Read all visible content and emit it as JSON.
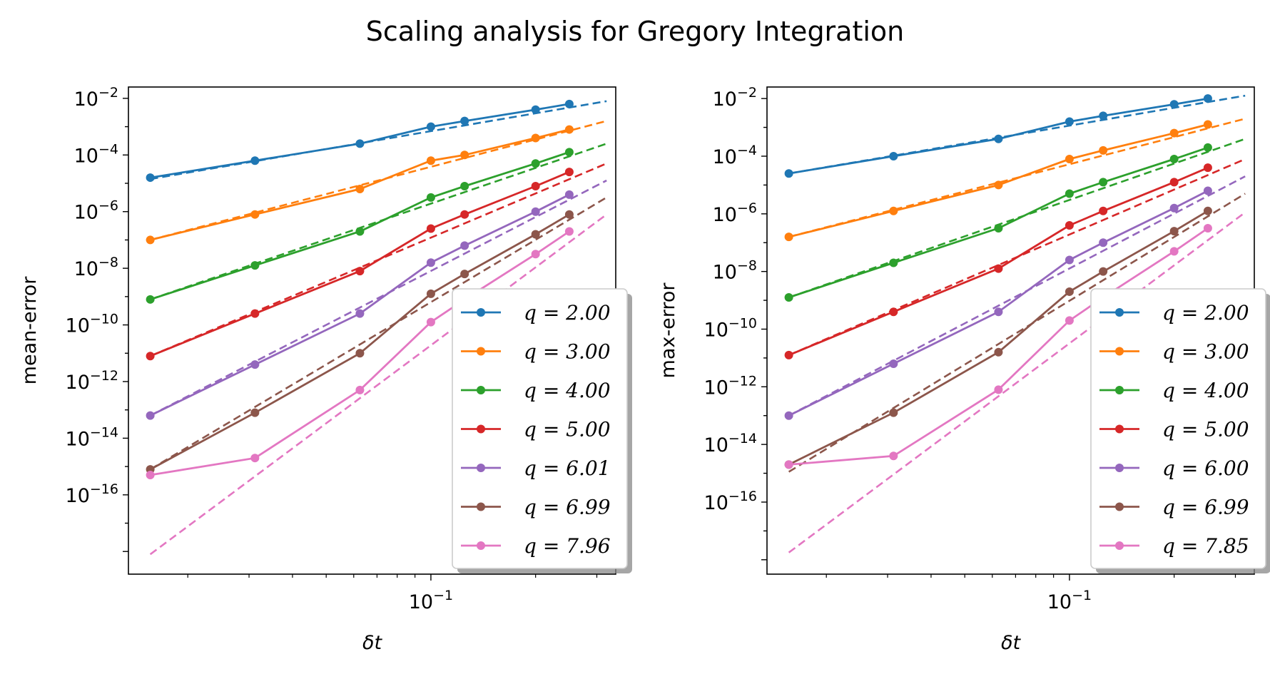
{
  "title": "Scaling analysis for Gregory Integration",
  "colors": [
    "#1f77b4",
    "#ff7f0e",
    "#2ca02c",
    "#d62728",
    "#9467bd",
    "#8c564b",
    "#e377c2"
  ],
  "chart_data": [
    {
      "type": "line",
      "xscale": "log",
      "yscale": "log",
      "xlabel": "δt",
      "ylabel": "mean-error",
      "xlim": [
        0.0135,
        0.34
      ],
      "ylim_exp": [
        -18.8,
        -1.6
      ],
      "xticks": [
        {
          "base": "10",
          "exp": "−1",
          "value": 0.1
        }
      ],
      "yticks": [
        {
          "base": "10",
          "exp": "−16",
          "value": -16
        },
        {
          "base": "10",
          "exp": "−14",
          "value": -14
        },
        {
          "base": "10",
          "exp": "−12",
          "value": -12
        },
        {
          "base": "10",
          "exp": "−10",
          "value": -10
        },
        {
          "base": "10",
          "exp": "−8",
          "value": -8
        },
        {
          "base": "10",
          "exp": "−6",
          "value": -6
        },
        {
          "base": "10",
          "exp": "−4",
          "value": -4
        },
        {
          "base": "10",
          "exp": "−2",
          "value": -2
        }
      ],
      "x": [
        0.0156,
        0.0312,
        0.0625,
        0.1,
        0.125,
        0.2,
        0.25
      ],
      "legend_location": "lower right",
      "series": [
        {
          "name": "q = 2.00",
          "log10_values": [
            -4.8,
            -4.2,
            -3.6,
            -3.0,
            -2.8,
            -2.4,
            -2.2
          ],
          "fit": [
            [
              0.0156,
              -4.85
            ],
            [
              0.32,
              -2.1
            ]
          ]
        },
        {
          "name": "q = 3.00",
          "log10_values": [
            -7.0,
            -6.1,
            -5.2,
            -4.2,
            -4.0,
            -3.4,
            -3.1
          ],
          "fit": [
            [
              0.0156,
              -7.0
            ],
            [
              0.32,
              -2.8
            ]
          ]
        },
        {
          "name": "q = 4.00",
          "log10_values": [
            -9.1,
            -7.9,
            -6.7,
            -5.5,
            -5.1,
            -4.3,
            -3.9
          ],
          "fit": [
            [
              0.0156,
              -9.1
            ],
            [
              0.32,
              -3.6
            ]
          ]
        },
        {
          "name": "q = 5.00",
          "log10_values": [
            -11.1,
            -9.6,
            -8.1,
            -6.6,
            -6.1,
            -5.1,
            -4.6
          ],
          "fit": [
            [
              0.0156,
              -11.1
            ],
            [
              0.32,
              -4.3
            ]
          ]
        },
        {
          "name": "q = 6.01",
          "log10_values": [
            -13.2,
            -11.4,
            -9.6,
            -7.8,
            -7.2,
            -6.0,
            -5.4
          ],
          "fit": [
            [
              0.0156,
              -13.2
            ],
            [
              0.32,
              -4.9
            ]
          ]
        },
        {
          "name": "q = 6.99",
          "log10_values": [
            -15.1,
            -13.1,
            -11.0,
            -8.9,
            -8.2,
            -6.8,
            -6.1
          ],
          "fit": [
            [
              0.0156,
              -15.1
            ],
            [
              0.32,
              -5.5
            ]
          ]
        },
        {
          "name": "q = 7.96",
          "log10_values": [
            -15.3,
            -14.7,
            -12.3,
            -9.9,
            -9.1,
            -7.5,
            -6.7
          ],
          "fit": [
            [
              0.0156,
              -18.1
            ],
            [
              0.32,
              -6.1
            ]
          ]
        }
      ]
    },
    {
      "type": "line",
      "xscale": "log",
      "yscale": "log",
      "xlabel": "δt",
      "ylabel": "max-error",
      "xlim": [
        0.0135,
        0.34
      ],
      "ylim_exp": [
        -18.5,
        -1.6
      ],
      "xticks": [
        {
          "base": "10",
          "exp": "−1",
          "value": 0.1
        }
      ],
      "yticks": [
        {
          "base": "10",
          "exp": "−16",
          "value": -16
        },
        {
          "base": "10",
          "exp": "−14",
          "value": -14
        },
        {
          "base": "10",
          "exp": "−12",
          "value": -12
        },
        {
          "base": "10",
          "exp": "−10",
          "value": -10
        },
        {
          "base": "10",
          "exp": "−8",
          "value": -8
        },
        {
          "base": "10",
          "exp": "−6",
          "value": -6
        },
        {
          "base": "10",
          "exp": "−4",
          "value": -4
        },
        {
          "base": "10",
          "exp": "−2",
          "value": -2
        }
      ],
      "x": [
        0.0156,
        0.0312,
        0.0625,
        0.1,
        0.125,
        0.2,
        0.25
      ],
      "legend_location": "lower right",
      "series": [
        {
          "name": "q = 2.00",
          "log10_values": [
            -4.6,
            -4.0,
            -3.4,
            -2.8,
            -2.6,
            -2.2,
            -2.0
          ],
          "fit": [
            [
              0.0156,
              -4.6
            ],
            [
              0.32,
              -1.9
            ]
          ]
        },
        {
          "name": "q = 3.00",
          "log10_values": [
            -6.8,
            -5.9,
            -5.0,
            -4.1,
            -3.8,
            -3.2,
            -2.9
          ],
          "fit": [
            [
              0.0156,
              -6.8
            ],
            [
              0.32,
              -2.7
            ]
          ]
        },
        {
          "name": "q = 4.00",
          "log10_values": [
            -8.9,
            -7.7,
            -6.5,
            -5.3,
            -4.9,
            -4.1,
            -3.7
          ],
          "fit": [
            [
              0.0156,
              -8.9
            ],
            [
              0.32,
              -3.4
            ]
          ]
        },
        {
          "name": "q = 5.00",
          "log10_values": [
            -10.9,
            -9.4,
            -7.9,
            -6.4,
            -5.9,
            -4.9,
            -4.4
          ],
          "fit": [
            [
              0.0156,
              -10.9
            ],
            [
              0.32,
              -4.1
            ]
          ]
        },
        {
          "name": "q = 6.00",
          "log10_values": [
            -13.0,
            -11.2,
            -9.4,
            -7.6,
            -7.0,
            -5.8,
            -5.2
          ],
          "fit": [
            [
              0.0156,
              -13.0
            ],
            [
              0.32,
              -4.7
            ]
          ]
        },
        {
          "name": "q = 6.99",
          "log10_values": [
            -14.7,
            -12.9,
            -10.8,
            -8.7,
            -8.0,
            -6.6,
            -5.9
          ],
          "fit": [
            [
              0.0156,
              -14.95
            ],
            [
              0.32,
              -5.3
            ]
          ]
        },
        {
          "name": "q = 7.85",
          "log10_values": [
            -14.7,
            -14.4,
            -12.1,
            -9.7,
            -8.9,
            -7.3,
            -6.5
          ],
          "fit": [
            [
              0.0156,
              -17.75
            ],
            [
              0.32,
              -5.95
            ]
          ]
        }
      ]
    }
  ]
}
